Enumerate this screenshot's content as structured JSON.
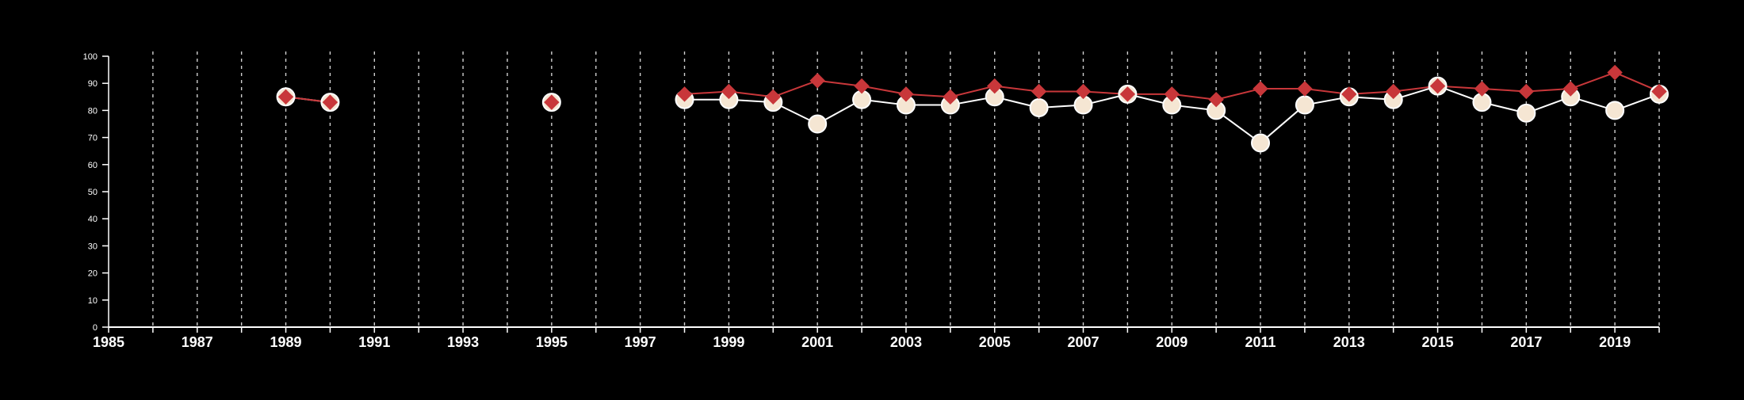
{
  "chart_data": {
    "type": "line",
    "title": "",
    "xlabel": "",
    "ylabel": "",
    "xlim": [
      1985,
      2020
    ],
    "ylim": [
      0,
      100
    ],
    "xticks": [
      1985,
      1987,
      1989,
      1991,
      1993,
      1995,
      1997,
      1999,
      2001,
      2003,
      2005,
      2007,
      2009,
      2011,
      2013,
      2015,
      2017,
      2019
    ],
    "yticks": [
      0,
      10,
      20,
      30,
      40,
      50,
      60,
      70,
      80,
      90,
      100
    ],
    "grid": "vertical dashed lines at every year",
    "legend": "none",
    "series": [
      {
        "marker": "circle",
        "color": "#ffffff",
        "fill": "#f5e6d3",
        "points": [
          {
            "x": 1989,
            "y": 85
          },
          {
            "x": 1990,
            "y": 83
          },
          {
            "x": 1995,
            "y": 83
          },
          {
            "x": 1998,
            "y": 84
          },
          {
            "x": 1999,
            "y": 84
          },
          {
            "x": 2000,
            "y": 83
          },
          {
            "x": 2001,
            "y": 75
          },
          {
            "x": 2002,
            "y": 84
          },
          {
            "x": 2003,
            "y": 82
          },
          {
            "x": 2004,
            "y": 82
          },
          {
            "x": 2005,
            "y": 85
          },
          {
            "x": 2006,
            "y": 81
          },
          {
            "x": 2007,
            "y": 82
          },
          {
            "x": 2008,
            "y": 86
          },
          {
            "x": 2009,
            "y": 82
          },
          {
            "x": 2010,
            "y": 80
          },
          {
            "x": 2011,
            "y": 68
          },
          {
            "x": 2012,
            "y": 82
          },
          {
            "x": 2013,
            "y": 85
          },
          {
            "x": 2014,
            "y": 84
          },
          {
            "x": 2015,
            "y": 89
          },
          {
            "x": 2016,
            "y": 83
          },
          {
            "x": 2017,
            "y": 79
          },
          {
            "x": 2018,
            "y": 85
          },
          {
            "x": 2019,
            "y": 80
          },
          {
            "x": 2020,
            "y": 86
          }
        ]
      },
      {
        "marker": "diamond",
        "color": "#c8373a",
        "fill": "#c8373a",
        "points": [
          {
            "x": 1989,
            "y": 85
          },
          {
            "x": 1990,
            "y": 83
          },
          {
            "x": 1995,
            "y": 83
          },
          {
            "x": 1998,
            "y": 86
          },
          {
            "x": 1999,
            "y": 87
          },
          {
            "x": 2000,
            "y": 85
          },
          {
            "x": 2001,
            "y": 91
          },
          {
            "x": 2002,
            "y": 89
          },
          {
            "x": 2003,
            "y": 86
          },
          {
            "x": 2004,
            "y": 85
          },
          {
            "x": 2005,
            "y": 89
          },
          {
            "x": 2006,
            "y": 87
          },
          {
            "x": 2007,
            "y": 87
          },
          {
            "x": 2008,
            "y": 86
          },
          {
            "x": 2009,
            "y": 86
          },
          {
            "x": 2010,
            "y": 84
          },
          {
            "x": 2011,
            "y": 88
          },
          {
            "x": 2012,
            "y": 88
          },
          {
            "x": 2013,
            "y": 86
          },
          {
            "x": 2014,
            "y": 87
          },
          {
            "x": 2015,
            "y": 89
          },
          {
            "x": 2016,
            "y": 88
          },
          {
            "x": 2017,
            "y": 87
          },
          {
            "x": 2018,
            "y": 88
          },
          {
            "x": 2019,
            "y": 94
          },
          {
            "x": 2020,
            "y": 87
          }
        ]
      }
    ]
  }
}
